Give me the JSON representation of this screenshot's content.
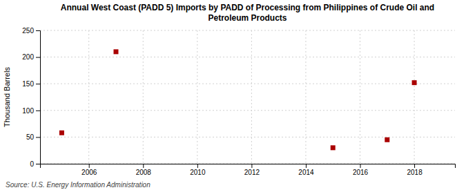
{
  "chart_data": {
    "type": "scatter",
    "title": "Annual West Coast (PADD 5) Imports by PADD of Processing from Philippines of Crude Oil and\nPetroleum Products",
    "ylabel": "Thousand Barrels",
    "source": "Source: U.S. Energy Information Administration",
    "x": [
      2005,
      2007,
      2015,
      2017,
      2018
    ],
    "values": [
      58,
      210,
      30,
      45,
      152
    ],
    "color": "#aa0000",
    "marker": "square",
    "xlim": [
      2004.2,
      2019.5
    ],
    "ylim": [
      0,
      250
    ],
    "xticks": [
      2006,
      2008,
      2010,
      2012,
      2014,
      2016,
      2018
    ],
    "yticks": [
      0,
      50,
      100,
      150,
      200,
      250
    ],
    "grid": true
  }
}
